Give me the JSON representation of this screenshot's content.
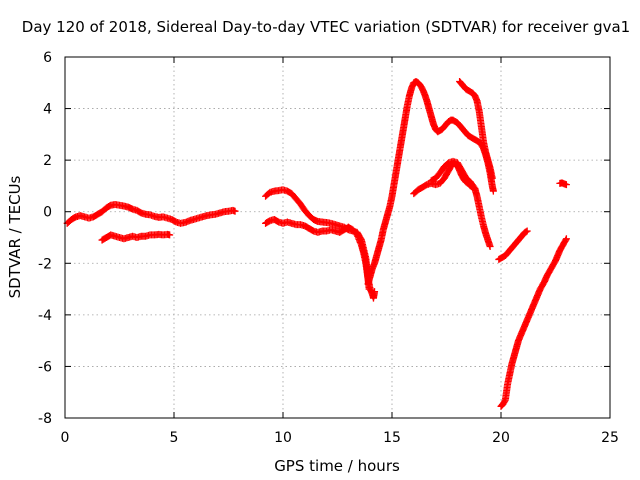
{
  "chart_data": {
    "type": "scatter",
    "title": "Day 120 of 2018, Sidereal Day-to-day VTEC variation (SDTVAR) for receiver gva1",
    "xlabel": "GPS time / hours",
    "ylabel": "SDTVAR / TECUs",
    "xlim": [
      0,
      25
    ],
    "ylim": [
      -8,
      6
    ],
    "xticks": [
      0,
      5,
      10,
      15,
      20,
      25
    ],
    "yticks": [
      -8,
      -6,
      -4,
      -2,
      0,
      2,
      4,
      6
    ],
    "xtick_labels": [
      "0",
      "5",
      "10",
      "15",
      "20",
      "25"
    ],
    "ytick_labels": [
      "-8",
      "-6",
      "-4",
      "-2",
      "0",
      "2",
      "4",
      "6"
    ],
    "grid": true,
    "marker": "plus",
    "color": "#ff0000",
    "series": [
      {
        "points": [
          [
            0.1,
            -0.45
          ],
          [
            0.3,
            -0.3
          ],
          [
            0.5,
            -0.2
          ],
          [
            0.7,
            -0.15
          ],
          [
            0.9,
            -0.2
          ],
          [
            1.1,
            -0.25
          ],
          [
            1.3,
            -0.2
          ],
          [
            1.5,
            -0.1
          ],
          [
            1.7,
            0.0
          ],
          [
            1.9,
            0.15
          ],
          [
            2.1,
            0.25
          ],
          [
            2.3,
            0.28
          ],
          [
            2.5,
            0.25
          ],
          [
            2.7,
            0.22
          ],
          [
            2.9,
            0.18
          ],
          [
            3.1,
            0.1
          ],
          [
            3.3,
            0.05
          ],
          [
            3.5,
            -0.05
          ],
          [
            3.7,
            -0.1
          ],
          [
            3.9,
            -0.12
          ],
          [
            4.1,
            -0.18
          ],
          [
            4.3,
            -0.22
          ],
          [
            4.5,
            -0.2
          ],
          [
            4.7,
            -0.25
          ],
          [
            4.9,
            -0.3
          ],
          [
            5.1,
            -0.4
          ],
          [
            5.3,
            -0.45
          ],
          [
            5.5,
            -0.42
          ],
          [
            5.7,
            -0.35
          ],
          [
            5.9,
            -0.3
          ],
          [
            6.1,
            -0.25
          ],
          [
            6.3,
            -0.2
          ],
          [
            6.5,
            -0.15
          ],
          [
            6.7,
            -0.12
          ],
          [
            6.9,
            -0.1
          ],
          [
            7.1,
            -0.05
          ],
          [
            7.3,
            0.0
          ],
          [
            7.5,
            0.02
          ],
          [
            7.7,
            0.05
          ],
          [
            7.8,
            0.02
          ]
        ]
      },
      {
        "points": [
          [
            1.7,
            -1.1
          ],
          [
            1.9,
            -1.0
          ],
          [
            2.1,
            -0.9
          ],
          [
            2.3,
            -0.95
          ],
          [
            2.5,
            -1.0
          ],
          [
            2.7,
            -1.05
          ],
          [
            2.9,
            -1.0
          ],
          [
            3.1,
            -0.95
          ],
          [
            3.3,
            -1.0
          ],
          [
            3.5,
            -0.95
          ],
          [
            3.7,
            -0.95
          ],
          [
            3.9,
            -0.9
          ],
          [
            4.1,
            -0.9
          ],
          [
            4.3,
            -0.88
          ],
          [
            4.5,
            -0.9
          ],
          [
            4.7,
            -0.88
          ],
          [
            4.8,
            -0.9
          ]
        ]
      },
      {
        "points": [
          [
            9.2,
            -0.45
          ],
          [
            9.4,
            -0.35
          ],
          [
            9.6,
            -0.3
          ],
          [
            9.8,
            -0.4
          ],
          [
            10.0,
            -0.45
          ],
          [
            10.2,
            -0.4
          ],
          [
            10.4,
            -0.45
          ],
          [
            10.6,
            -0.5
          ],
          [
            10.8,
            -0.5
          ],
          [
            11.0,
            -0.55
          ],
          [
            11.2,
            -0.65
          ],
          [
            11.4,
            -0.75
          ],
          [
            11.6,
            -0.8
          ],
          [
            11.8,
            -0.75
          ],
          [
            12.0,
            -0.75
          ],
          [
            12.2,
            -0.7
          ],
          [
            12.4,
            -0.75
          ],
          [
            12.6,
            -0.8
          ],
          [
            12.8,
            -0.7
          ],
          [
            13.0,
            -0.6
          ],
          [
            13.2,
            -0.7
          ],
          [
            13.4,
            -0.9
          ],
          [
            13.6,
            -1.3
          ],
          [
            13.7,
            -1.6
          ],
          [
            13.8,
            -2.0
          ],
          [
            13.9,
            -2.6
          ],
          [
            14.0,
            -3.0
          ],
          [
            14.1,
            -3.2
          ],
          [
            14.15,
            -3.35
          ],
          [
            14.2,
            -3.1
          ]
        ]
      },
      {
        "points": [
          [
            9.2,
            0.6
          ],
          [
            9.4,
            0.75
          ],
          [
            9.6,
            0.8
          ],
          [
            9.8,
            0.82
          ],
          [
            10.0,
            0.85
          ],
          [
            10.2,
            0.8
          ],
          [
            10.4,
            0.7
          ],
          [
            10.6,
            0.5
          ],
          [
            10.8,
            0.3
          ],
          [
            11.0,
            0.05
          ],
          [
            11.2,
            -0.15
          ],
          [
            11.4,
            -0.3
          ],
          [
            11.6,
            -0.38
          ],
          [
            11.8,
            -0.4
          ],
          [
            12.0,
            -0.42
          ],
          [
            12.2,
            -0.45
          ],
          [
            12.4,
            -0.5
          ],
          [
            12.6,
            -0.55
          ],
          [
            12.8,
            -0.6
          ],
          [
            13.0,
            -0.7
          ],
          [
            13.2,
            -0.75
          ],
          [
            13.4,
            -0.8
          ],
          [
            13.6,
            -1.1
          ],
          [
            13.8,
            -1.8
          ],
          [
            13.95,
            -3.0
          ]
        ]
      },
      {
        "points": [
          [
            13.9,
            -2.8
          ],
          [
            14.0,
            -2.5
          ],
          [
            14.1,
            -2.2
          ],
          [
            14.2,
            -2.0
          ],
          [
            14.3,
            -1.7
          ],
          [
            14.4,
            -1.4
          ],
          [
            14.5,
            -1.1
          ],
          [
            14.6,
            -0.7
          ],
          [
            14.7,
            -0.4
          ],
          [
            14.8,
            -0.1
          ],
          [
            14.9,
            0.2
          ],
          [
            15.0,
            0.6
          ],
          [
            15.1,
            1.1
          ],
          [
            15.2,
            1.6
          ],
          [
            15.3,
            2.1
          ],
          [
            15.4,
            2.6
          ],
          [
            15.5,
            3.1
          ],
          [
            15.6,
            3.6
          ],
          [
            15.7,
            4.1
          ],
          [
            15.8,
            4.5
          ],
          [
            15.9,
            4.8
          ],
          [
            16.0,
            5.0
          ],
          [
            16.1,
            5.05
          ],
          [
            16.2,
            5.0
          ],
          [
            16.3,
            4.9
          ],
          [
            16.4,
            4.75
          ],
          [
            16.5,
            4.55
          ],
          [
            16.6,
            4.3
          ],
          [
            16.7,
            4.0
          ],
          [
            16.8,
            3.7
          ],
          [
            16.9,
            3.4
          ],
          [
            17.0,
            3.2
          ],
          [
            17.1,
            3.1
          ],
          [
            17.2,
            3.15
          ],
          [
            17.3,
            3.2
          ],
          [
            17.4,
            3.3
          ],
          [
            17.5,
            3.4
          ],
          [
            17.6,
            3.5
          ],
          [
            17.7,
            3.55
          ],
          [
            17.8,
            3.55
          ],
          [
            17.9,
            3.5
          ],
          [
            18.0,
            3.45
          ],
          [
            18.1,
            3.35
          ],
          [
            18.2,
            3.25
          ],
          [
            18.3,
            3.15
          ],
          [
            18.4,
            3.05
          ],
          [
            18.5,
            2.95
          ],
          [
            18.6,
            2.9
          ],
          [
            18.7,
            2.85
          ],
          [
            18.8,
            2.8
          ],
          [
            18.9,
            2.75
          ],
          [
            19.0,
            2.7
          ],
          [
            19.1,
            2.6
          ],
          [
            19.2,
            2.45
          ],
          [
            19.3,
            2.2
          ],
          [
            19.4,
            1.9
          ],
          [
            19.5,
            1.5
          ],
          [
            19.6,
            1.0
          ],
          [
            19.65,
            0.8
          ]
        ]
      },
      {
        "points": [
          [
            18.1,
            5.05
          ],
          [
            18.2,
            4.95
          ],
          [
            18.3,
            4.85
          ],
          [
            18.4,
            4.75
          ],
          [
            18.5,
            4.7
          ],
          [
            18.6,
            4.65
          ],
          [
            18.7,
            4.6
          ],
          [
            18.8,
            4.5
          ],
          [
            18.9,
            4.3
          ],
          [
            19.0,
            3.9
          ],
          [
            19.1,
            3.3
          ],
          [
            19.2,
            2.7
          ],
          [
            19.3,
            2.3
          ],
          [
            19.4,
            2.0
          ],
          [
            19.5,
            1.7
          ],
          [
            19.6,
            1.3
          ]
        ]
      },
      {
        "points": [
          [
            16.0,
            0.7
          ],
          [
            16.2,
            0.85
          ],
          [
            16.4,
            0.95
          ],
          [
            16.6,
            1.05
          ],
          [
            16.8,
            1.1
          ],
          [
            17.0,
            1.05
          ],
          [
            17.2,
            1.1
          ],
          [
            17.4,
            1.3
          ],
          [
            17.6,
            1.6
          ],
          [
            17.8,
            1.9
          ],
          [
            18.0,
            1.8
          ],
          [
            18.1,
            1.6
          ],
          [
            18.2,
            1.4
          ],
          [
            18.3,
            1.25
          ],
          [
            18.4,
            1.15
          ],
          [
            18.5,
            1.1
          ],
          [
            18.6,
            1.0
          ],
          [
            18.7,
            0.95
          ],
          [
            18.8,
            0.9
          ],
          [
            18.9,
            0.6
          ],
          [
            19.0,
            0.2
          ],
          [
            19.1,
            -0.2
          ],
          [
            19.2,
            -0.55
          ],
          [
            19.3,
            -0.85
          ],
          [
            19.4,
            -1.1
          ],
          [
            19.5,
            -1.35
          ]
        ]
      },
      {
        "points": [
          [
            16.8,
            1.2
          ],
          [
            17.0,
            1.3
          ],
          [
            17.2,
            1.5
          ],
          [
            17.4,
            1.75
          ],
          [
            17.6,
            1.9
          ],
          [
            17.8,
            1.95
          ],
          [
            18.0,
            1.9
          ],
          [
            18.2,
            1.6
          ],
          [
            18.4,
            1.3
          ],
          [
            18.6,
            1.15
          ],
          [
            18.8,
            0.9
          ]
        ]
      },
      {
        "points": [
          [
            19.9,
            -1.85
          ],
          [
            20.0,
            -1.8
          ],
          [
            20.1,
            -1.75
          ],
          [
            20.2,
            -1.7
          ],
          [
            20.3,
            -1.6
          ],
          [
            20.4,
            -1.5
          ],
          [
            20.5,
            -1.4
          ],
          [
            20.6,
            -1.3
          ],
          [
            20.7,
            -1.2
          ],
          [
            20.8,
            -1.1
          ],
          [
            20.9,
            -1.0
          ],
          [
            21.0,
            -0.9
          ],
          [
            21.1,
            -0.8
          ],
          [
            21.2,
            -0.75
          ]
        ]
      },
      {
        "points": [
          [
            20.0,
            -7.55
          ],
          [
            20.1,
            -7.45
          ],
          [
            20.2,
            -7.3
          ],
          [
            20.25,
            -7.0
          ],
          [
            20.3,
            -6.7
          ],
          [
            20.4,
            -6.3
          ],
          [
            20.5,
            -5.9
          ],
          [
            20.6,
            -5.6
          ],
          [
            20.7,
            -5.3
          ],
          [
            20.8,
            -5.0
          ],
          [
            20.9,
            -4.8
          ],
          [
            21.0,
            -4.6
          ],
          [
            21.1,
            -4.4
          ],
          [
            21.2,
            -4.2
          ],
          [
            21.3,
            -4.0
          ],
          [
            21.4,
            -3.8
          ],
          [
            21.5,
            -3.6
          ],
          [
            21.6,
            -3.4
          ],
          [
            21.7,
            -3.2
          ],
          [
            21.8,
            -3.0
          ],
          [
            21.9,
            -2.85
          ],
          [
            22.0,
            -2.7
          ],
          [
            22.1,
            -2.5
          ],
          [
            22.2,
            -2.35
          ],
          [
            22.3,
            -2.2
          ],
          [
            22.4,
            -2.05
          ],
          [
            22.5,
            -1.9
          ],
          [
            22.6,
            -1.7
          ],
          [
            22.7,
            -1.5
          ],
          [
            22.8,
            -1.35
          ],
          [
            22.9,
            -1.2
          ],
          [
            23.0,
            -1.05
          ]
        ]
      },
      {
        "points": [
          [
            22.7,
            1.1
          ],
          [
            22.8,
            1.12
          ],
          [
            22.9,
            1.08
          ],
          [
            23.0,
            1.05
          ]
        ]
      }
    ]
  }
}
